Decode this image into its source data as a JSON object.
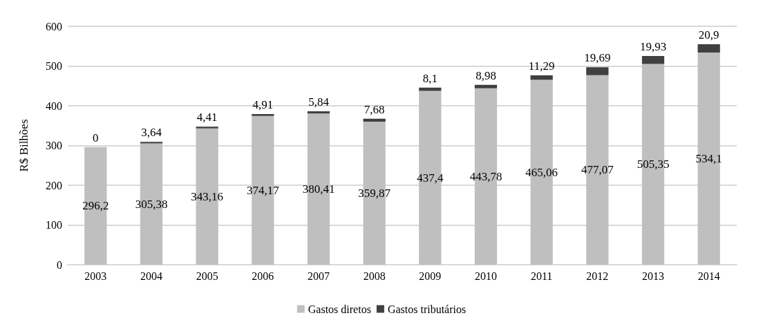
{
  "chart_data": {
    "type": "bar",
    "stacked": true,
    "ylabel": "R$ Bilhões",
    "categories": [
      "2003",
      "2004",
      "2005",
      "2006",
      "2007",
      "2008",
      "2009",
      "2010",
      "2011",
      "2012",
      "2013",
      "2014"
    ],
    "series": [
      {
        "name": "Gastos diretos",
        "color": "#bfbfbf",
        "values": [
          296.2,
          305.38,
          343.16,
          374.17,
          380.41,
          359.87,
          437.4,
          443.78,
          465.06,
          477.07,
          505.35,
          534.1
        ],
        "value_labels": [
          "296,2",
          "305,38",
          "343,16",
          "374,17",
          "380,41",
          "359,87",
          "437,4",
          "443,78",
          "465,06",
          "477,07",
          "505,35",
          "534,1"
        ]
      },
      {
        "name": "Gastos tributários",
        "color": "#404040",
        "values": [
          0,
          3.64,
          4.41,
          4.91,
          5.84,
          7.68,
          8.1,
          8.98,
          11.29,
          19.69,
          19.93,
          20.9
        ],
        "value_labels": [
          "0",
          "3,64",
          "4,41",
          "4,91",
          "5,84",
          "7,68",
          "8,1",
          "8,98",
          "11,29",
          "19,69",
          "19,93",
          "20,9"
        ]
      }
    ],
    "ylim": [
      0,
      600
    ],
    "yticks": [
      0,
      100,
      200,
      300,
      400,
      500,
      600
    ],
    "grid": "y",
    "legend": "bottom"
  }
}
